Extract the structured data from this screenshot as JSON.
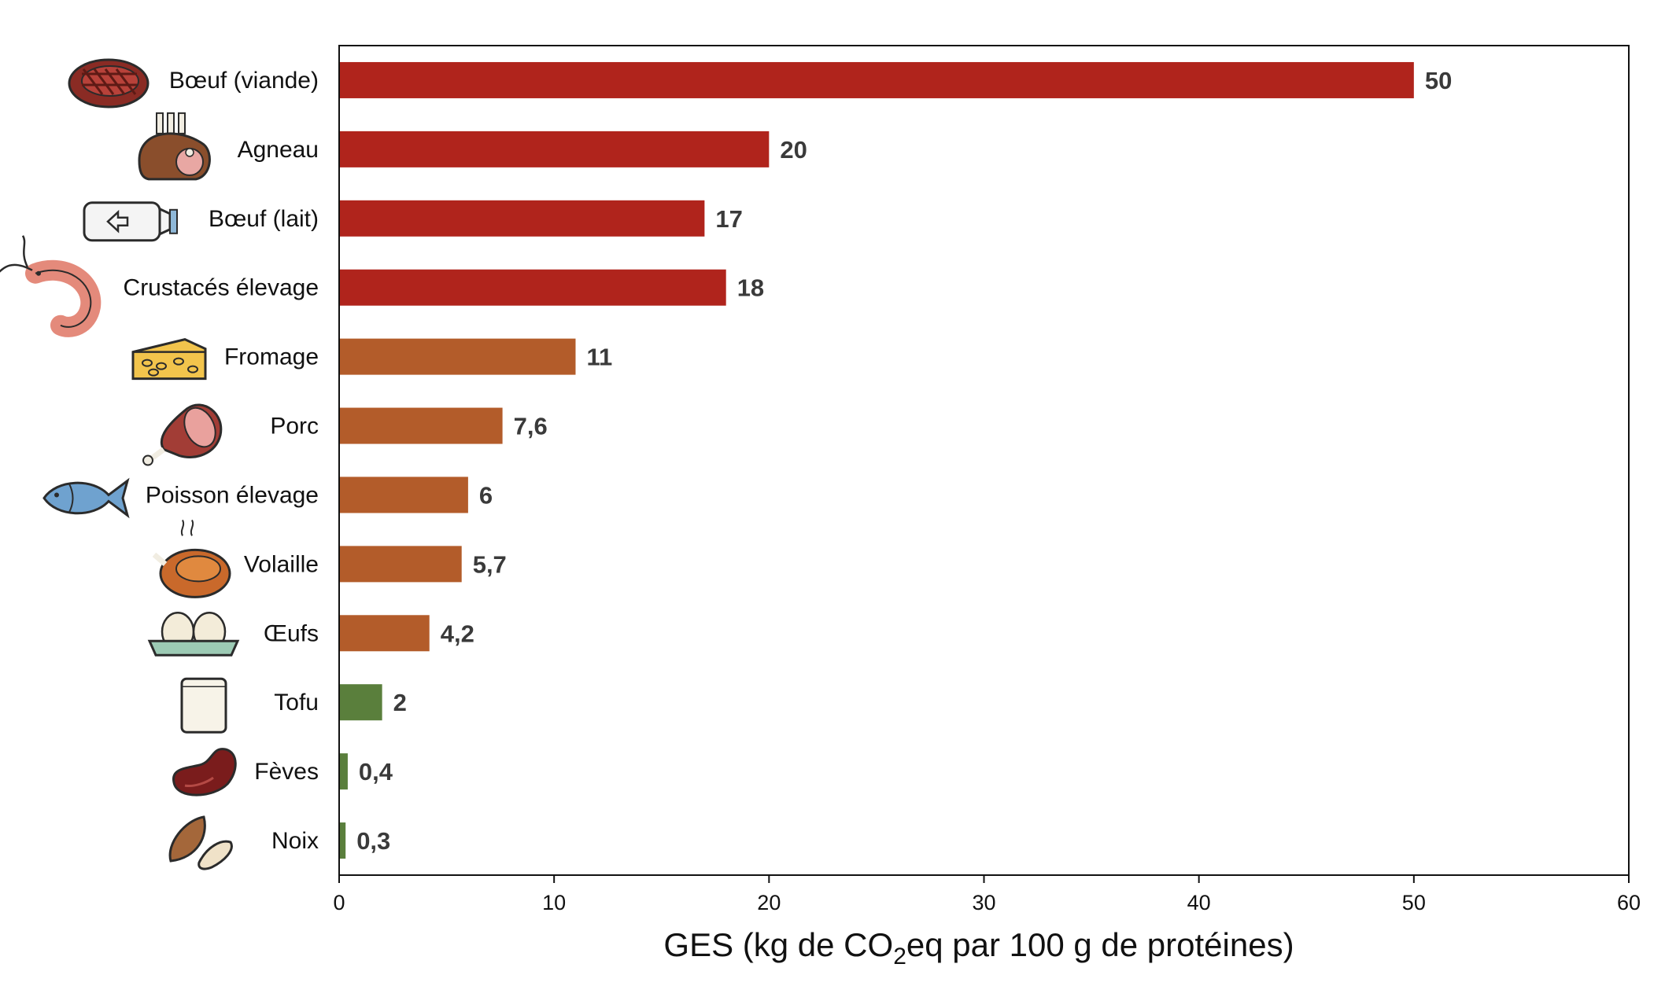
{
  "chart_data": {
    "type": "bar",
    "orientation": "horizontal",
    "categories": [
      "Bœuf (viande)",
      "Agneau",
      "Bœuf (lait)",
      "Crustacés élevage",
      "Fromage",
      "Porc",
      "Poisson élevage",
      "Volaille",
      "Œufs",
      "Tofu",
      "Fèves",
      "Noix"
    ],
    "values": [
      50,
      20,
      17,
      18,
      11,
      7.6,
      6,
      5.7,
      4.2,
      2,
      0.4,
      0.3
    ],
    "value_labels": [
      "50",
      "20",
      "17",
      "18",
      "11",
      "7,6",
      "6",
      "5,7",
      "4,2",
      "2",
      "0,4",
      "0,3"
    ],
    "bar_colors": [
      "#b0241c",
      "#b0241c",
      "#b0241c",
      "#b0241c",
      "#b35c2a",
      "#b35c2a",
      "#b35c2a",
      "#b35c2a",
      "#b35c2a",
      "#5a7f3c",
      "#5a7f3c",
      "#5a7f3c"
    ],
    "icons": [
      "steak-icon",
      "lamb-rack-icon",
      "milk-bottle-icon",
      "shrimp-icon",
      "cheese-icon",
      "ham-icon",
      "fish-icon",
      "roast-chicken-icon",
      "eggs-icon",
      "tofu-icon",
      "bean-icon",
      "nuts-icon"
    ],
    "xlim": [
      0,
      60
    ],
    "xticks": [
      0,
      10,
      20,
      30,
      40,
      50,
      60
    ],
    "xlabel_parts": [
      "GES (kg de CO",
      "2",
      "eq par 100 g de protéines)"
    ],
    "grid": false,
    "legend": "none"
  }
}
